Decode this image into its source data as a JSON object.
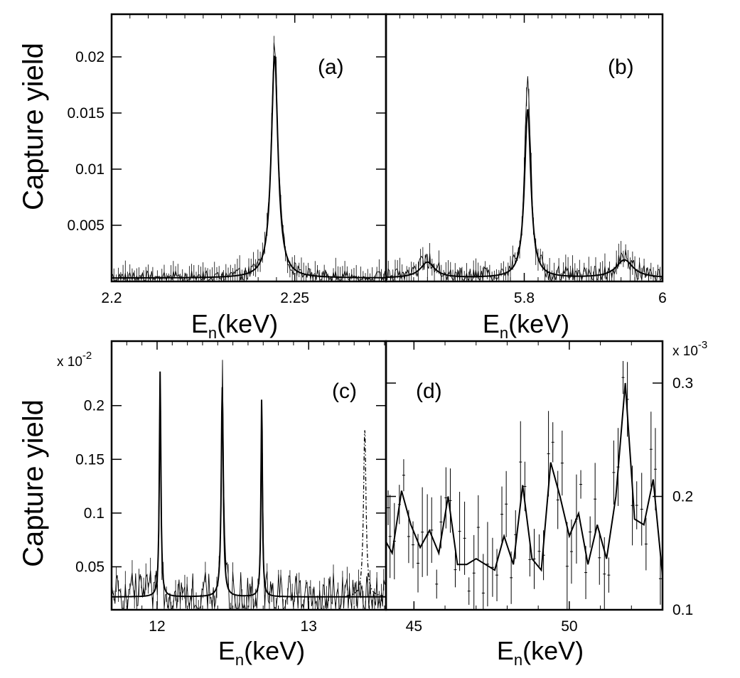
{
  "figure": {
    "ylabel_top": "Capture yield",
    "ylabel_bottom": "Capture yield"
  },
  "chart_data": [
    {
      "id": "a",
      "type": "line",
      "annotation": "(a)",
      "xlabel_main": "E",
      "xlabel_sub": "n",
      "xlabel_unit": "(keV)",
      "xlim": [
        2.2,
        2.2749
      ],
      "ylim": [
        0,
        0.0238
      ],
      "xticks": [
        {
          "value": 2.2,
          "label": "2.2"
        },
        {
          "value": 2.25,
          "label": "2.25"
        }
      ],
      "yticks": [
        {
          "value": 0.005,
          "label": "0.005"
        },
        {
          "value": 0.01,
          "label": "0.01"
        },
        {
          "value": 0.015,
          "label": "0.015"
        },
        {
          "value": 0.02,
          "label": "0.02"
        }
      ],
      "baseline": 0.0003,
      "peaks": [
        {
          "x": 2.2445,
          "height": 0.0198,
          "width": 0.0022
        }
      ],
      "data_peak_scale": 1.06,
      "data_noise": 0.0006,
      "dashed_curve": null
    },
    {
      "id": "b",
      "type": "line",
      "annotation": "(b)",
      "xlabel_main": "E",
      "xlabel_sub": "n",
      "xlabel_unit": "(keV)",
      "xlim": [
        5.6,
        6.0
      ],
      "ylim": [
        0,
        0.0238
      ],
      "xticks": [
        {
          "value": 5.8,
          "label": "5.8"
        },
        {
          "value": 6.0,
          "label": "6"
        }
      ],
      "yticks": [],
      "baseline": 0.0003,
      "peaks": [
        {
          "x": 5.66,
          "height": 0.0014,
          "width": 0.025
        },
        {
          "x": 5.805,
          "height": 0.015,
          "width": 0.011
        },
        {
          "x": 5.945,
          "height": 0.0016,
          "width": 0.03
        }
      ],
      "data_peak_scale": 1.15,
      "data_noise": 0.0008,
      "dashed_curve": null
    },
    {
      "id": "c",
      "type": "line",
      "annotation": "(c)",
      "xlabel_main": "E",
      "xlabel_sub": "n",
      "xlabel_unit": "(keV)",
      "xlim": [
        11.7,
        13.51
      ],
      "ylim": [
        0.1,
        2.6
      ],
      "exponent_label": "x 10",
      "exponent_power": "-2",
      "xticks": [
        {
          "value": 12.0,
          "label": "12"
        },
        {
          "value": 13.0,
          "label": "13"
        }
      ],
      "yticks": [
        {
          "value": 0.5,
          "label": "0.05"
        },
        {
          "value": 1.0,
          "label": "0.1"
        },
        {
          "value": 1.5,
          "label": "0.15"
        },
        {
          "value": 2.0,
          "label": "0.2"
        }
      ],
      "baseline": 0.22,
      "peaks": [
        {
          "x": 12.02,
          "height": 2.1,
          "width": 0.012
        },
        {
          "x": 12.43,
          "height": 1.95,
          "width": 0.016
        },
        {
          "x": 12.69,
          "height": 1.85,
          "width": 0.011
        }
      ],
      "data_peak_scale": 1.1,
      "data_noise": 0.22,
      "dashed_curve": {
        "x": 13.37,
        "height": 1.55,
        "width": 0.02
      }
    },
    {
      "id": "d",
      "type": "line",
      "annotation": "(d)",
      "xlabel_main": "E",
      "xlabel_sub": "n",
      "xlabel_unit": "(keV)",
      "xlim": [
        44.1,
        53.0
      ],
      "ylim": [
        0.1,
        0.337
      ],
      "exponent_label": "x 10",
      "exponent_power": "-3",
      "xticks": [
        {
          "value": 45,
          "label": "45"
        },
        {
          "value": 50,
          "label": "50"
        }
      ],
      "yticks": [
        {
          "value": 0.1,
          "label": "0.1"
        },
        {
          "value": 0.2,
          "label": "0.2"
        },
        {
          "value": 0.3,
          "label": "0.3"
        }
      ],
      "fit_x": [
        44.1,
        44.3,
        44.6,
        44.9,
        45.2,
        45.5,
        45.8,
        46.1,
        46.4,
        46.7,
        47.0,
        47.3,
        47.6,
        47.9,
        48.2,
        48.5,
        48.8,
        49.1,
        49.4,
        49.7,
        50.0,
        50.3,
        50.6,
        50.9,
        51.2,
        51.5,
        51.8,
        52.1,
        52.4,
        52.7,
        53.0
      ],
      "fit_y": [
        0.16,
        0.15,
        0.205,
        0.175,
        0.155,
        0.17,
        0.15,
        0.2,
        0.14,
        0.14,
        0.145,
        0.14,
        0.135,
        0.165,
        0.14,
        0.21,
        0.145,
        0.135,
        0.23,
        0.2,
        0.165,
        0.185,
        0.14,
        0.175,
        0.145,
        0.2,
        0.3,
        0.18,
        0.175,
        0.215,
        0.13
      ],
      "data_noise": 0.03,
      "dashed_curve": null
    }
  ]
}
